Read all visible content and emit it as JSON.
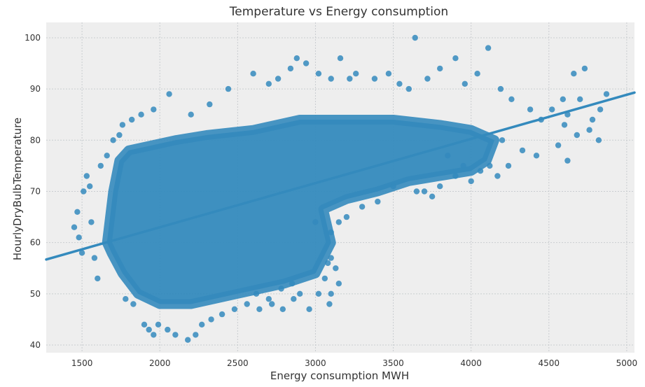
{
  "chart_data": {
    "type": "scatter",
    "title": "Temperature vs Energy consumption",
    "xlabel": "Energy consumption MWH",
    "ylabel": "HourlyDryBulbTemperature",
    "xlim": [
      1270,
      5050
    ],
    "ylim": [
      38.5,
      103
    ],
    "xticks": [
      1500,
      2000,
      2500,
      3000,
      3500,
      4000,
      4500,
      5000
    ],
    "yticks": [
      40,
      50,
      60,
      70,
      80,
      90,
      100
    ],
    "grid": true,
    "point_color": "#348ABD",
    "background_color": "#EEEEEE",
    "regression_line": {
      "x": [
        1270,
        5050
      ],
      "y": [
        56.7,
        89.3
      ]
    },
    "points": [
      [
        1780,
        49
      ],
      [
        1830,
        48
      ],
      [
        1900,
        44
      ],
      [
        1930,
        43
      ],
      [
        1960,
        42
      ],
      [
        1990,
        44
      ],
      [
        2050,
        43
      ],
      [
        2100,
        42
      ],
      [
        2180,
        41
      ],
      [
        2230,
        42
      ],
      [
        2270,
        44
      ],
      [
        2330,
        45
      ],
      [
        2400,
        46
      ],
      [
        2480,
        47
      ],
      [
        2560,
        48
      ],
      [
        2640,
        47
      ],
      [
        2720,
        48
      ],
      [
        2790,
        47
      ],
      [
        2860,
        49
      ],
      [
        2960,
        47
      ],
      [
        3020,
        50
      ],
      [
        3090,
        48
      ],
      [
        3100,
        50
      ],
      [
        1450,
        63
      ],
      [
        1480,
        61
      ],
      [
        1500,
        58
      ],
      [
        1470,
        66
      ],
      [
        1510,
        70
      ],
      [
        1530,
        73
      ],
      [
        1550,
        71
      ],
      [
        1560,
        64
      ],
      [
        1580,
        57
      ],
      [
        1600,
        53
      ],
      [
        1620,
        75
      ],
      [
        1660,
        77
      ],
      [
        1700,
        80
      ],
      [
        1740,
        81
      ],
      [
        1760,
        83
      ],
      [
        1820,
        84
      ],
      [
        1880,
        85
      ],
      [
        1960,
        86
      ],
      [
        2060,
        89
      ],
      [
        2200,
        85
      ],
      [
        2320,
        87
      ],
      [
        2440,
        90
      ],
      [
        2600,
        93
      ],
      [
        2700,
        91
      ],
      [
        2760,
        92
      ],
      [
        2840,
        94
      ],
      [
        2880,
        96
      ],
      [
        2940,
        95
      ],
      [
        3020,
        93
      ],
      [
        3100,
        92
      ],
      [
        3160,
        96
      ],
      [
        3220,
        92
      ],
      [
        3260,
        93
      ],
      [
        3380,
        92
      ],
      [
        3470,
        93
      ],
      [
        3540,
        91
      ],
      [
        3600,
        90
      ],
      [
        3640,
        100
      ],
      [
        3720,
        92
      ],
      [
        3800,
        94
      ],
      [
        3900,
        96
      ],
      [
        3960,
        91
      ],
      [
        4040,
        93
      ],
      [
        4110,
        98
      ],
      [
        4190,
        90
      ],
      [
        4260,
        88
      ],
      [
        4380,
        86
      ],
      [
        4450,
        84
      ],
      [
        4520,
        86
      ],
      [
        4590,
        88
      ],
      [
        4620,
        85
      ],
      [
        4660,
        93
      ],
      [
        4700,
        88
      ],
      [
        4730,
        94
      ],
      [
        4780,
        84
      ],
      [
        4830,
        86
      ],
      [
        4870,
        89
      ],
      [
        4200,
        80
      ],
      [
        4330,
        78
      ],
      [
        4420,
        77
      ],
      [
        4560,
        79
      ],
      [
        4600,
        83
      ],
      [
        4680,
        81
      ],
      [
        4760,
        82
      ],
      [
        4820,
        80
      ],
      [
        4620,
        76
      ],
      [
        3850,
        77
      ],
      [
        3900,
        73
      ],
      [
        3950,
        75
      ],
      [
        4000,
        72
      ],
      [
        4060,
        74
      ],
      [
        4120,
        75
      ],
      [
        4170,
        73
      ],
      [
        4240,
        75
      ],
      [
        3500,
        71
      ],
      [
        3650,
        70
      ],
      [
        3700,
        70
      ],
      [
        3750,
        69
      ],
      [
        3800,
        71
      ],
      [
        3000,
        64
      ],
      [
        3100,
        62
      ],
      [
        3150,
        64
      ],
      [
        3200,
        65
      ],
      [
        3300,
        67
      ],
      [
        3400,
        68
      ],
      [
        3100,
        57
      ],
      [
        3130,
        55
      ],
      [
        3150,
        52
      ],
      [
        3080,
        56
      ],
      [
        3060,
        53
      ],
      [
        2850,
        52
      ],
      [
        2900,
        50
      ],
      [
        2780,
        51
      ],
      [
        2700,
        49
      ],
      [
        2620,
        50
      ]
    ]
  }
}
